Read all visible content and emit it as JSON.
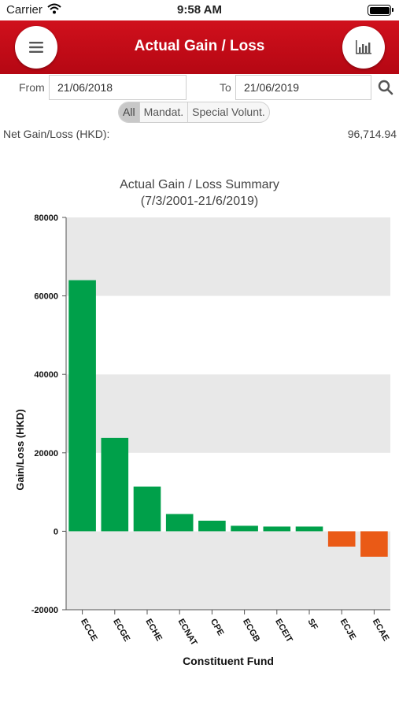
{
  "status_bar": {
    "carrier": "Carrier",
    "time": "9:58 AM"
  },
  "header": {
    "title": "Actual Gain / Loss",
    "menu_icon": "hamburger-menu-icon",
    "chart_icon": "bar-chart-icon"
  },
  "filters": {
    "from_label": "From",
    "from_value": "21/06/2018",
    "to_label": "To",
    "to_value": "21/06/2019",
    "search_icon": "search-icon",
    "segments": [
      {
        "label": "All",
        "active": true
      },
      {
        "label": "Mandat.",
        "active": false
      },
      {
        "label": "Special Volunt.",
        "active": false
      }
    ]
  },
  "summary": {
    "net_label": "Net Gain/Loss (HKD):",
    "net_value": "96,714.94"
  },
  "chart_data": {
    "type": "bar",
    "title": "Actual Gain / Loss Summary",
    "subtitle": "(7/3/2001-21/6/2019)",
    "xlabel": "Constituent Fund",
    "ylabel": "Gain/Loss (HKD)",
    "ylim": [
      -20000,
      80000
    ],
    "yticks": [
      -20000,
      0,
      20000,
      40000,
      60000,
      80000
    ],
    "categories": [
      "ECCE",
      "ECGE",
      "ECHE",
      "ECNAT",
      "CPE",
      "ECGB",
      "ECEIT",
      "SF",
      "ECJE",
      "ECAE"
    ],
    "values": [
      64000,
      23800,
      11400,
      4400,
      2700,
      1400,
      1200,
      1200,
      -3900,
      -6500
    ],
    "positive_color": "#00a04a",
    "negative_color": "#ea5a16",
    "band_color": "#e8e8e8",
    "grid": true
  }
}
